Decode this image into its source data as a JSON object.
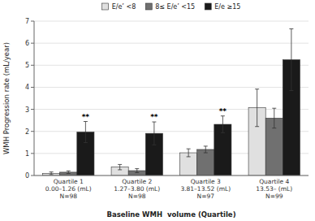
{
  "chart_data": {
    "type": "bar",
    "categories": [
      "Quartile 1\n0.00–1.26 (mL)\nN=98",
      "Quartile 2\n1.27–3.80 (mL)\nN=98",
      "Quartile 3\n3.81–13.52 (mL)\nN=97",
      "Quartile 4\n13.53– (mL)\nN=99"
    ],
    "series": [
      {
        "name": "E/e’ <8",
        "color": "#e0e0e0",
        "values": [
          0.1,
          0.38,
          1.03,
          3.07
        ],
        "errors": [
          0.06,
          0.12,
          0.18,
          0.85
        ]
      },
      {
        "name": "8≤ E/e’ <15",
        "color": "#707070",
        "values": [
          0.15,
          0.22,
          1.18,
          2.6
        ],
        "errors": [
          0.06,
          0.09,
          0.15,
          0.45
        ]
      },
      {
        "name": "E/e ≥15",
        "color": "#1a1a1a",
        "values": [
          1.97,
          1.91,
          2.32,
          5.25
        ],
        "errors": [
          0.48,
          0.52,
          0.38,
          1.4
        ]
      }
    ],
    "y_label": "WMH Progression rate (mL/year)",
    "x_label": "Baseline WMH  volume (Quartile)",
    "ylim": [
      0,
      7
    ],
    "yticks": [
      0,
      1,
      2,
      3,
      4,
      5,
      6,
      7
    ],
    "annotations": [
      {
        "text": "**",
        "category": 0,
        "series": 2
      },
      {
        "text": "**",
        "category": 1,
        "series": 2
      },
      {
        "text": "**",
        "category": 2,
        "series": 2
      }
    ],
    "grid": true,
    "legend": "top"
  }
}
